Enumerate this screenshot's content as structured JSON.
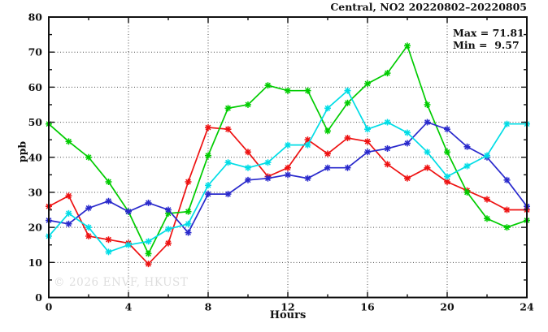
{
  "header": {
    "title": "Central, NO2 20220802–20220805"
  },
  "annotations": {
    "max": "Max = 71.81",
    "min": "Min =  9.57"
  },
  "watermark": "© 2026 ENVF, HKUST",
  "colors": {
    "frame": "#111111",
    "grid": "#4a4a4a",
    "text": "#111111",
    "watermark": "#dedede",
    "background": "#ffffff"
  },
  "chart_data": {
    "type": "line",
    "title": "Central, NO2 20220802–20220805",
    "xlabel": "Hours",
    "ylabel": "ppb",
    "xlim": [
      0,
      24
    ],
    "ylim": [
      0,
      80
    ],
    "x_major_tick": 4,
    "x_minor_tick": 2,
    "y_major_tick": 10,
    "y_minor_tick": 5,
    "grid": "dotted lines at major ticks",
    "legend_position": "none",
    "marker": "asterisk",
    "max_value": 71.81,
    "min_value": 9.57,
    "x": [
      0,
      1,
      2,
      3,
      4,
      5,
      6,
      7,
      8,
      9,
      10,
      11,
      12,
      13,
      14,
      15,
      16,
      17,
      18,
      19,
      20,
      21,
      22,
      23,
      24
    ],
    "series": [
      {
        "name": "red",
        "color": "#ee1111",
        "values": [
          26,
          29,
          17.5,
          16.5,
          15.5,
          9.57,
          15.5,
          33,
          48.5,
          48,
          41.5,
          34.5,
          37,
          45,
          41,
          45.5,
          44.5,
          38,
          34,
          37,
          33,
          30.5,
          28,
          25,
          25
        ]
      },
      {
        "name": "green",
        "color": "#00cc00",
        "values": [
          49.5,
          44.5,
          40,
          33,
          24.5,
          12.5,
          24,
          24.5,
          40.5,
          54,
          55,
          60.5,
          59,
          59,
          47.5,
          55.5,
          61,
          64,
          71.81,
          55,
          41.5,
          30,
          22.5,
          20,
          22
        ]
      },
      {
        "name": "blue",
        "color": "#2929cc",
        "values": [
          22,
          21,
          25.5,
          27.5,
          24.5,
          27,
          25,
          18.5,
          29.5,
          29.5,
          33.5,
          34,
          35,
          34,
          37,
          37,
          41.5,
          42.5,
          44,
          50,
          48,
          43,
          40,
          33.5,
          26
        ]
      },
      {
        "name": "cyan",
        "color": "#00dde6",
        "values": [
          17.5,
          24,
          20,
          13,
          15,
          16,
          19.5,
          21,
          32,
          38.5,
          37,
          38.5,
          43.5,
          43.5,
          54,
          59,
          48,
          50,
          47,
          41.5,
          34.5,
          37.5,
          40.5,
          49.5,
          49.5
        ]
      }
    ]
  }
}
